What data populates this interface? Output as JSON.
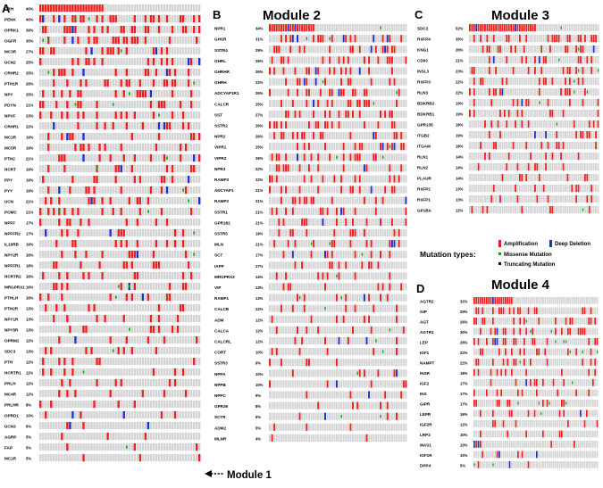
{
  "colors": {
    "amplification": "#ee1c1c",
    "deep_deletion": "#1a2fd0",
    "missense": "#149e14",
    "truncating": "#111111",
    "none": "#d3d3d3"
  },
  "panels": [
    {
      "letter": "A",
      "title": "",
      "rows": [
        [
          "CRH",
          "40%"
        ],
        [
          "PENK",
          "40%"
        ],
        [
          "OPRK1",
          "39%"
        ],
        [
          "OGFR",
          "30%"
        ],
        [
          "MC3R",
          "27%"
        ],
        [
          "UCN2",
          "25%"
        ],
        [
          "CRHR2",
          "25%"
        ],
        [
          "PTH1R",
          "26%"
        ],
        [
          "NPY",
          "25%"
        ],
        [
          "PDYN",
          "21%"
        ],
        [
          "NPVF",
          "23%"
        ],
        [
          "CRHR1",
          "22%"
        ],
        [
          "MC2R",
          "19%"
        ],
        [
          "MC5R",
          "19%"
        ],
        [
          "PTH2",
          "21%"
        ],
        [
          "HCRT",
          "19%"
        ],
        [
          "PPY",
          "19%"
        ],
        [
          "PYY",
          "19%"
        ],
        [
          "UCN",
          "21%"
        ],
        [
          "POMC",
          "21%"
        ],
        [
          "NPFF",
          "17%"
        ],
        [
          "NPFFR2",
          "17%"
        ],
        [
          "IL10RB",
          "19%"
        ],
        [
          "NPY2R",
          "16%"
        ],
        [
          "NPFFR1",
          "18%"
        ],
        [
          "HCRTR2",
          "16%"
        ],
        [
          "MRGPRX1",
          "16%"
        ],
        [
          "PTHLH",
          "16%"
        ],
        [
          "PTH2R",
          "13%"
        ],
        [
          "NPY1R",
          "13%"
        ],
        [
          "NPY5R",
          "13%"
        ],
        [
          "OPRM1",
          "12%"
        ],
        [
          "SDC3",
          "13%"
        ],
        [
          "PTH",
          "12%"
        ],
        [
          "HCRTR1",
          "11%"
        ],
        [
          "PRLH",
          "12%"
        ],
        [
          "MC4R",
          "12%"
        ],
        [
          "PRLHR",
          "8%"
        ],
        [
          "OPRD1",
          "10%"
        ],
        [
          "UCN3",
          "6%"
        ],
        [
          "AGRP",
          "5%"
        ],
        [
          "FAP",
          "5%"
        ],
        [
          "MC1R",
          "5%"
        ]
      ]
    },
    {
      "letter": "B",
      "title": "Module 2",
      "rows": [
        [
          "NPR1",
          "34%"
        ],
        [
          "GHSR",
          "31%"
        ],
        [
          "SSTR4",
          "29%"
        ],
        [
          "GHRL",
          "26%"
        ],
        [
          "GHRHR",
          "26%"
        ],
        [
          "GHRH",
          "22%"
        ],
        [
          "ADCYAP1R1",
          "26%"
        ],
        [
          "CALCR",
          "25%"
        ],
        [
          "SST",
          "27%"
        ],
        [
          "SSTR2",
          "26%"
        ],
        [
          "NPR2",
          "26%"
        ],
        [
          "VIPR1",
          "25%"
        ],
        [
          "VIPR2",
          "26%"
        ],
        [
          "NPR3",
          "22%"
        ],
        [
          "RAMP3",
          "22%"
        ],
        [
          "ADCYAP1",
          "21%"
        ],
        [
          "RAMP2",
          "21%"
        ],
        [
          "SSTR1",
          "21%"
        ],
        [
          "GPR182",
          "21%"
        ],
        [
          "SSTR5",
          "19%"
        ],
        [
          "MLN",
          "21%"
        ],
        [
          "SCT",
          "17%"
        ],
        [
          "IAPP",
          "17%"
        ],
        [
          "MRGPRX3",
          "14%"
        ],
        [
          "VIP",
          "13%"
        ],
        [
          "RAMP1",
          "13%"
        ],
        [
          "CALCB",
          "12%"
        ],
        [
          "ADM",
          "12%"
        ],
        [
          "CALCA",
          "12%"
        ],
        [
          "CALCRL",
          "12%"
        ],
        [
          "CORT",
          "10%"
        ],
        [
          "SSTR3",
          "9%"
        ],
        [
          "NPPA",
          "10%"
        ],
        [
          "NPPB",
          "10%"
        ],
        [
          "NPPC",
          "9%"
        ],
        [
          "GPR39",
          "8%"
        ],
        [
          "SCTR",
          "6%"
        ],
        [
          "ADM2",
          "5%"
        ],
        [
          "MLNR",
          "4%"
        ]
      ]
    },
    {
      "letter": "C",
      "title": "Module 3",
      "rows": [
        [
          "SDC2",
          "52%"
        ],
        [
          "RXFP4",
          "35%"
        ],
        [
          "KNG1",
          "26%"
        ],
        [
          "CD93",
          "21%"
        ],
        [
          "INSL3",
          "23%"
        ],
        [
          "RXFP3",
          "22%"
        ],
        [
          "RLN3",
          "22%"
        ],
        [
          "BDKRB2",
          "19%"
        ],
        [
          "BDKRB1",
          "19%"
        ],
        [
          "GPR135",
          "18%"
        ],
        [
          "ITGB2",
          "19%"
        ],
        [
          "ITGAM",
          "18%"
        ],
        [
          "RLN1",
          "14%"
        ],
        [
          "RLN2",
          "14%"
        ],
        [
          "PLAUR",
          "14%"
        ],
        [
          "RXFP2",
          "13%"
        ],
        [
          "RXFP1",
          "13%"
        ],
        [
          "GP1BA",
          "12%"
        ]
      ]
    },
    {
      "letter": "D",
      "title": "Module 4",
      "rows": [
        [
          "AGTR2",
          "32%"
        ],
        [
          "GIP",
          "29%"
        ],
        [
          "AGT",
          "26%"
        ],
        [
          "AGTR1",
          "30%"
        ],
        [
          "LEP",
          "28%"
        ],
        [
          "IGF1",
          "22%"
        ],
        [
          "NAMPT",
          "22%"
        ],
        [
          "INSR",
          "18%"
        ],
        [
          "IGF2",
          "17%"
        ],
        [
          "INS",
          "17%"
        ],
        [
          "GIPR",
          "17%"
        ],
        [
          "LEPR",
          "16%"
        ],
        [
          "IGF2R",
          "12%"
        ],
        [
          "LRP2",
          "10%"
        ],
        [
          "MAS1",
          "10%"
        ],
        [
          "IGF1R",
          "10%"
        ],
        [
          "DPP4",
          "5%"
        ]
      ]
    }
  ],
  "legend": {
    "heading": "Mutation types:",
    "items": [
      "Amplification",
      "Deep Deletion",
      "Missense Mutation",
      "Truncating Mutation"
    ]
  },
  "annotation": {
    "text": "Module 1"
  },
  "sample_count": 60,
  "seed": 7
}
